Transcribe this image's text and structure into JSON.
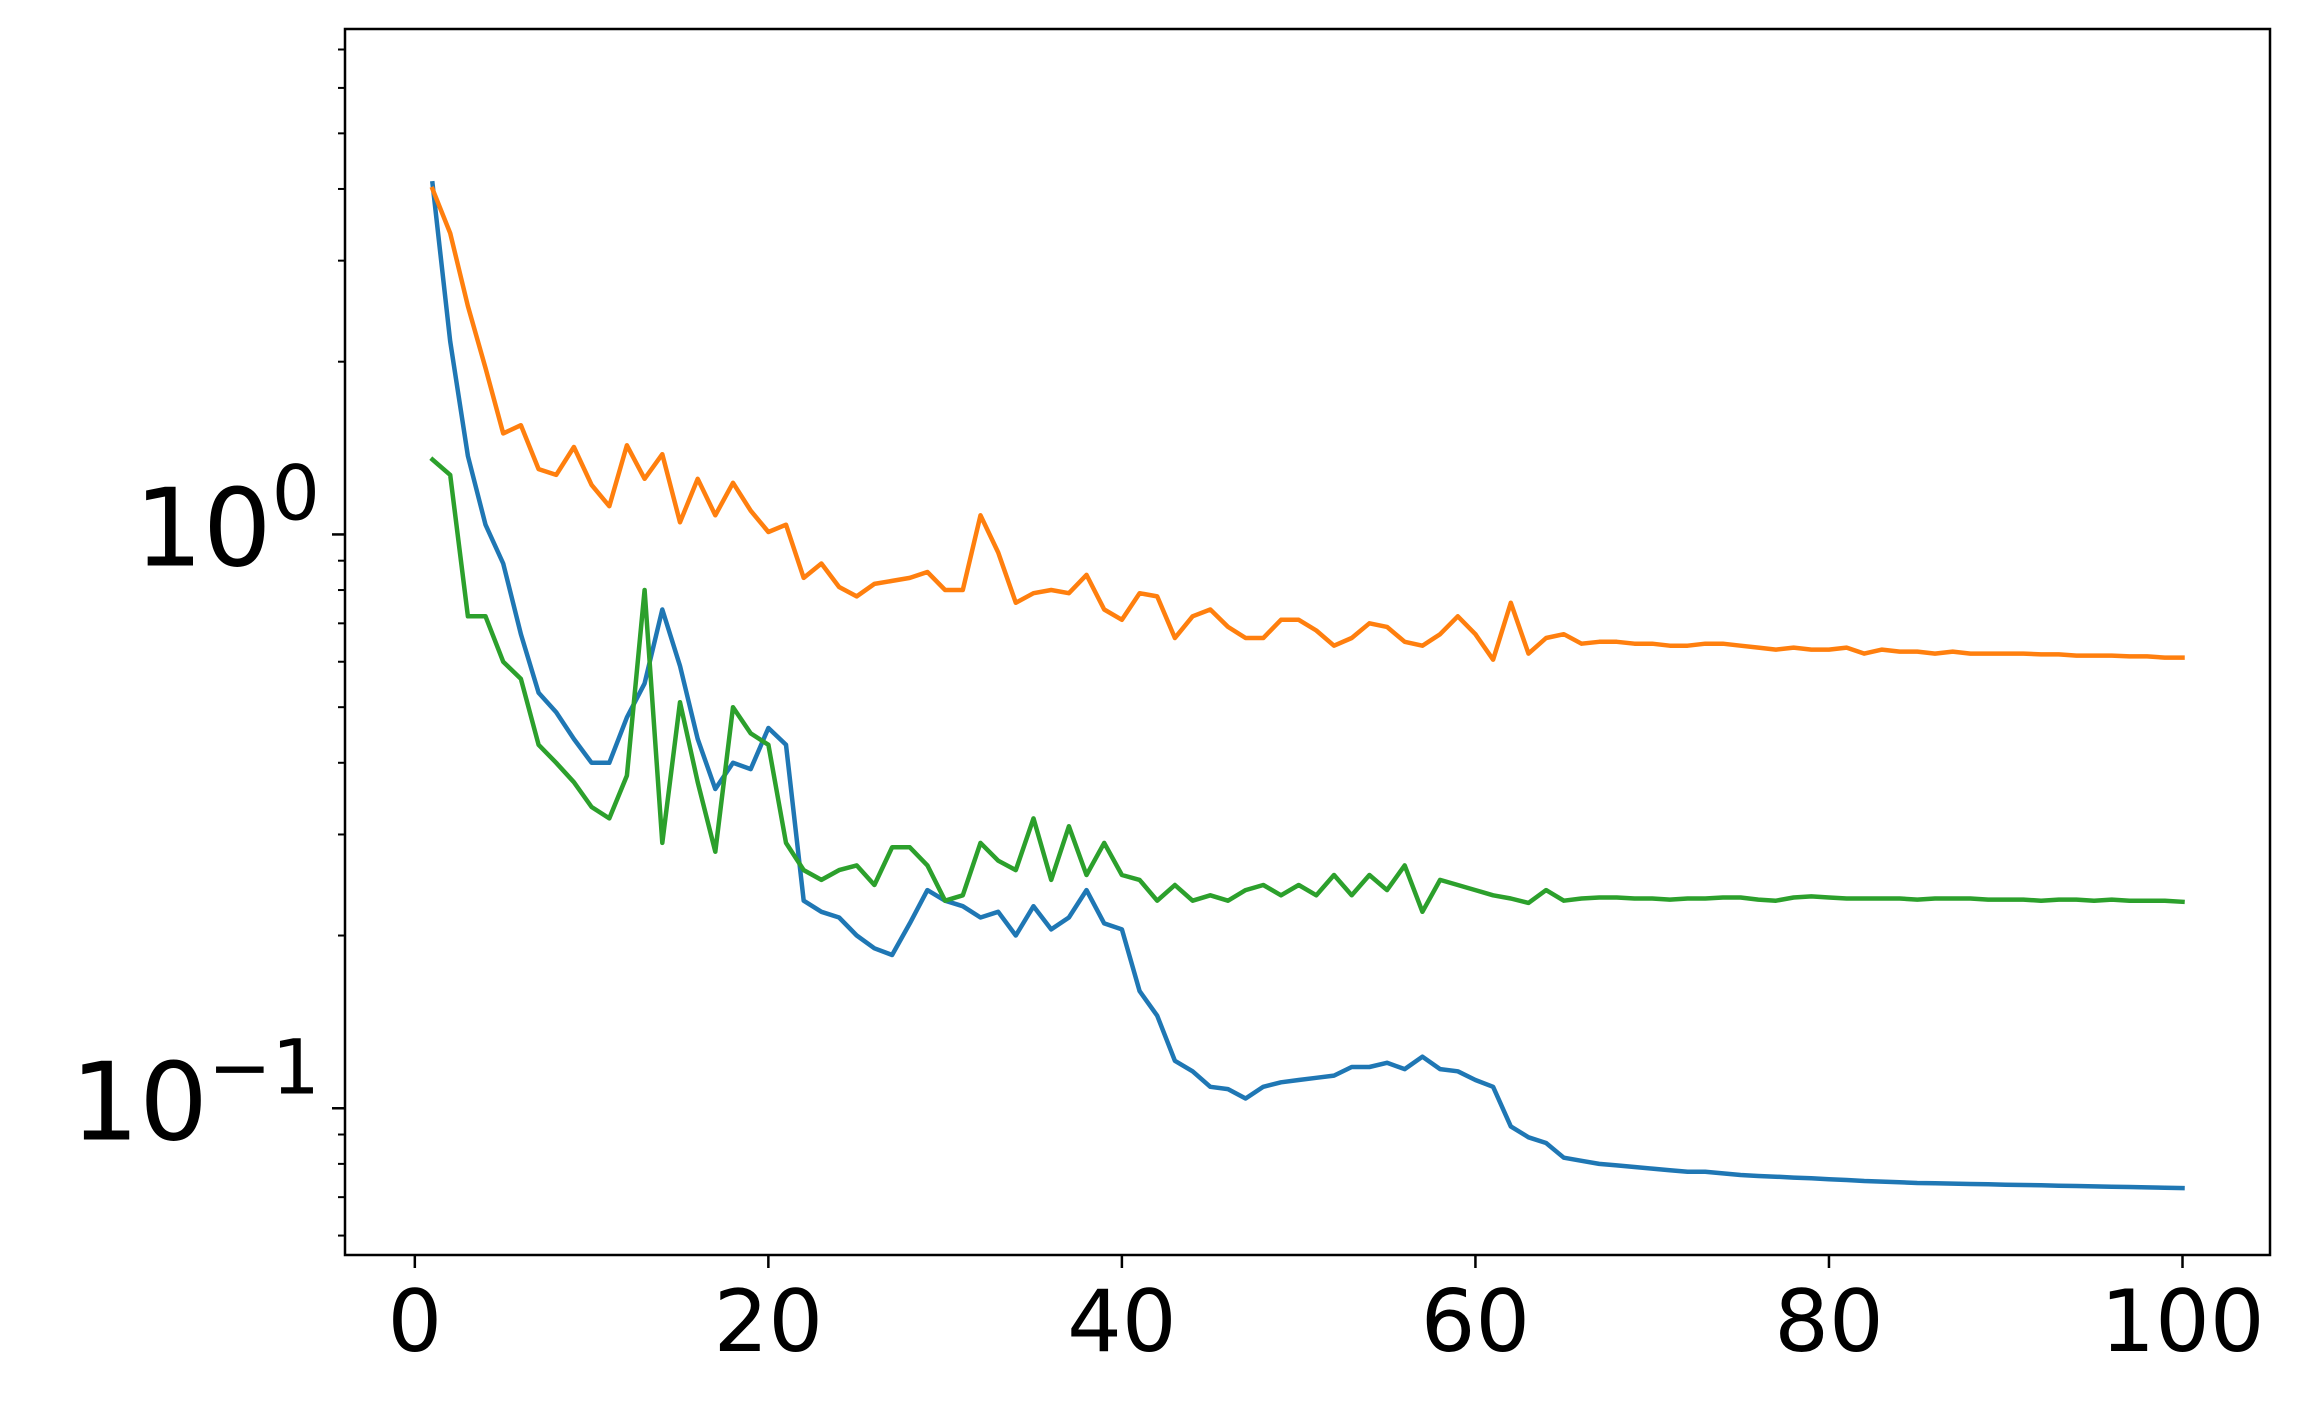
{
  "chart_data": {
    "type": "line",
    "title": "",
    "xlabel": "",
    "ylabel": "",
    "x_scale": "linear",
    "y_scale": "log",
    "xlim": [
      -3.95,
      104.95
    ],
    "ylim": [
      0.0555,
      7.6
    ],
    "grid": false,
    "x_ticks": [
      0,
      20,
      40,
      60,
      80,
      100
    ],
    "x_tick_labels": [
      "0",
      "20",
      "40",
      "60",
      "80",
      "100"
    ],
    "y_ticks": [
      {
        "value": 1.0,
        "base": "10",
        "exponent": "0"
      },
      {
        "value": 0.1,
        "base": "10",
        "exponent": "−1"
      }
    ],
    "x": [
      1,
      2,
      3,
      4,
      5,
      6,
      7,
      8,
      9,
      10,
      11,
      12,
      13,
      14,
      15,
      16,
      17,
      18,
      19,
      20,
      21,
      22,
      23,
      24,
      25,
      26,
      27,
      28,
      29,
      30,
      31,
      32,
      33,
      34,
      35,
      36,
      37,
      38,
      39,
      40,
      41,
      42,
      43,
      44,
      45,
      46,
      47,
      48,
      49,
      50,
      51,
      52,
      53,
      54,
      55,
      56,
      57,
      58,
      59,
      60,
      61,
      62,
      63,
      64,
      65,
      66,
      67,
      68,
      69,
      70,
      71,
      72,
      73,
      74,
      75,
      76,
      77,
      78,
      79,
      80,
      81,
      82,
      83,
      84,
      85,
      86,
      87,
      88,
      89,
      90,
      91,
      92,
      93,
      94,
      95,
      96,
      97,
      98,
      99,
      100
    ],
    "series": [
      {
        "color": "#1f77b4",
        "values": [
          4.09,
          2.17,
          1.37,
          1.04,
          0.89,
          0.67,
          0.53,
          0.49,
          0.44,
          0.4,
          0.4,
          0.48,
          0.55,
          0.74,
          0.59,
          0.44,
          0.36,
          0.4,
          0.39,
          0.46,
          0.43,
          0.23,
          0.22,
          0.215,
          0.2,
          0.19,
          0.185,
          0.21,
          0.24,
          0.23,
          0.225,
          0.215,
          0.22,
          0.2,
          0.225,
          0.205,
          0.215,
          0.24,
          0.21,
          0.205,
          0.16,
          0.145,
          0.121,
          0.116,
          0.109,
          0.108,
          0.104,
          0.109,
          0.111,
          0.112,
          0.113,
          0.114,
          0.118,
          0.118,
          0.12,
          0.117,
          0.123,
          0.117,
          0.116,
          0.112,
          0.109,
          0.093,
          0.089,
          0.087,
          0.082,
          0.081,
          0.08,
          0.0795,
          0.079,
          0.0785,
          0.078,
          0.0775,
          0.0775,
          0.077,
          0.0765,
          0.0762,
          0.076,
          0.0757,
          0.0755,
          0.0752,
          0.075,
          0.0747,
          0.0745,
          0.0743,
          0.0741,
          0.074,
          0.0739,
          0.0738,
          0.0737,
          0.0736,
          0.0735,
          0.0734,
          0.0733,
          0.0732,
          0.0731,
          0.073,
          0.0729,
          0.0728,
          0.0727,
          0.0726
        ]
      },
      {
        "color": "#ff7f0e",
        "values": [
          4.0,
          3.35,
          2.5,
          1.95,
          1.5,
          1.55,
          1.3,
          1.27,
          1.42,
          1.22,
          1.12,
          1.43,
          1.25,
          1.38,
          1.05,
          1.25,
          1.08,
          1.23,
          1.1,
          1.01,
          1.04,
          0.84,
          0.89,
          0.81,
          0.78,
          0.82,
          0.83,
          0.84,
          0.86,
          0.8,
          0.8,
          1.08,
          0.93,
          0.76,
          0.79,
          0.8,
          0.79,
          0.85,
          0.74,
          0.71,
          0.79,
          0.78,
          0.66,
          0.72,
          0.74,
          0.69,
          0.66,
          0.66,
          0.71,
          0.71,
          0.68,
          0.64,
          0.66,
          0.7,
          0.69,
          0.65,
          0.64,
          0.67,
          0.72,
          0.67,
          0.605,
          0.76,
          0.62,
          0.66,
          0.67,
          0.645,
          0.65,
          0.65,
          0.645,
          0.645,
          0.64,
          0.64,
          0.645,
          0.645,
          0.64,
          0.635,
          0.63,
          0.635,
          0.63,
          0.63,
          0.635,
          0.62,
          0.63,
          0.625,
          0.625,
          0.62,
          0.625,
          0.62,
          0.62,
          0.62,
          0.62,
          0.618,
          0.618,
          0.615,
          0.615,
          0.615,
          0.613,
          0.613,
          0.61,
          0.61
        ]
      },
      {
        "color": "#2ca02c",
        "values": [
          1.35,
          1.27,
          0.72,
          0.72,
          0.6,
          0.56,
          0.43,
          0.4,
          0.37,
          0.335,
          0.32,
          0.38,
          0.8,
          0.29,
          0.51,
          0.37,
          0.28,
          0.5,
          0.45,
          0.43,
          0.29,
          0.26,
          0.25,
          0.26,
          0.265,
          0.245,
          0.285,
          0.285,
          0.265,
          0.23,
          0.235,
          0.29,
          0.27,
          0.26,
          0.32,
          0.25,
          0.31,
          0.255,
          0.29,
          0.255,
          0.25,
          0.23,
          0.245,
          0.23,
          0.235,
          0.23,
          0.24,
          0.245,
          0.235,
          0.245,
          0.235,
          0.255,
          0.235,
          0.255,
          0.24,
          0.265,
          0.22,
          0.25,
          0.245,
          0.24,
          0.235,
          0.232,
          0.228,
          0.24,
          0.23,
          0.232,
          0.233,
          0.233,
          0.232,
          0.232,
          0.231,
          0.232,
          0.232,
          0.233,
          0.233,
          0.231,
          0.23,
          0.233,
          0.234,
          0.233,
          0.232,
          0.232,
          0.232,
          0.232,
          0.231,
          0.232,
          0.232,
          0.232,
          0.231,
          0.231,
          0.231,
          0.23,
          0.231,
          0.231,
          0.23,
          0.231,
          0.23,
          0.23,
          0.23,
          0.229
        ]
      }
    ]
  }
}
